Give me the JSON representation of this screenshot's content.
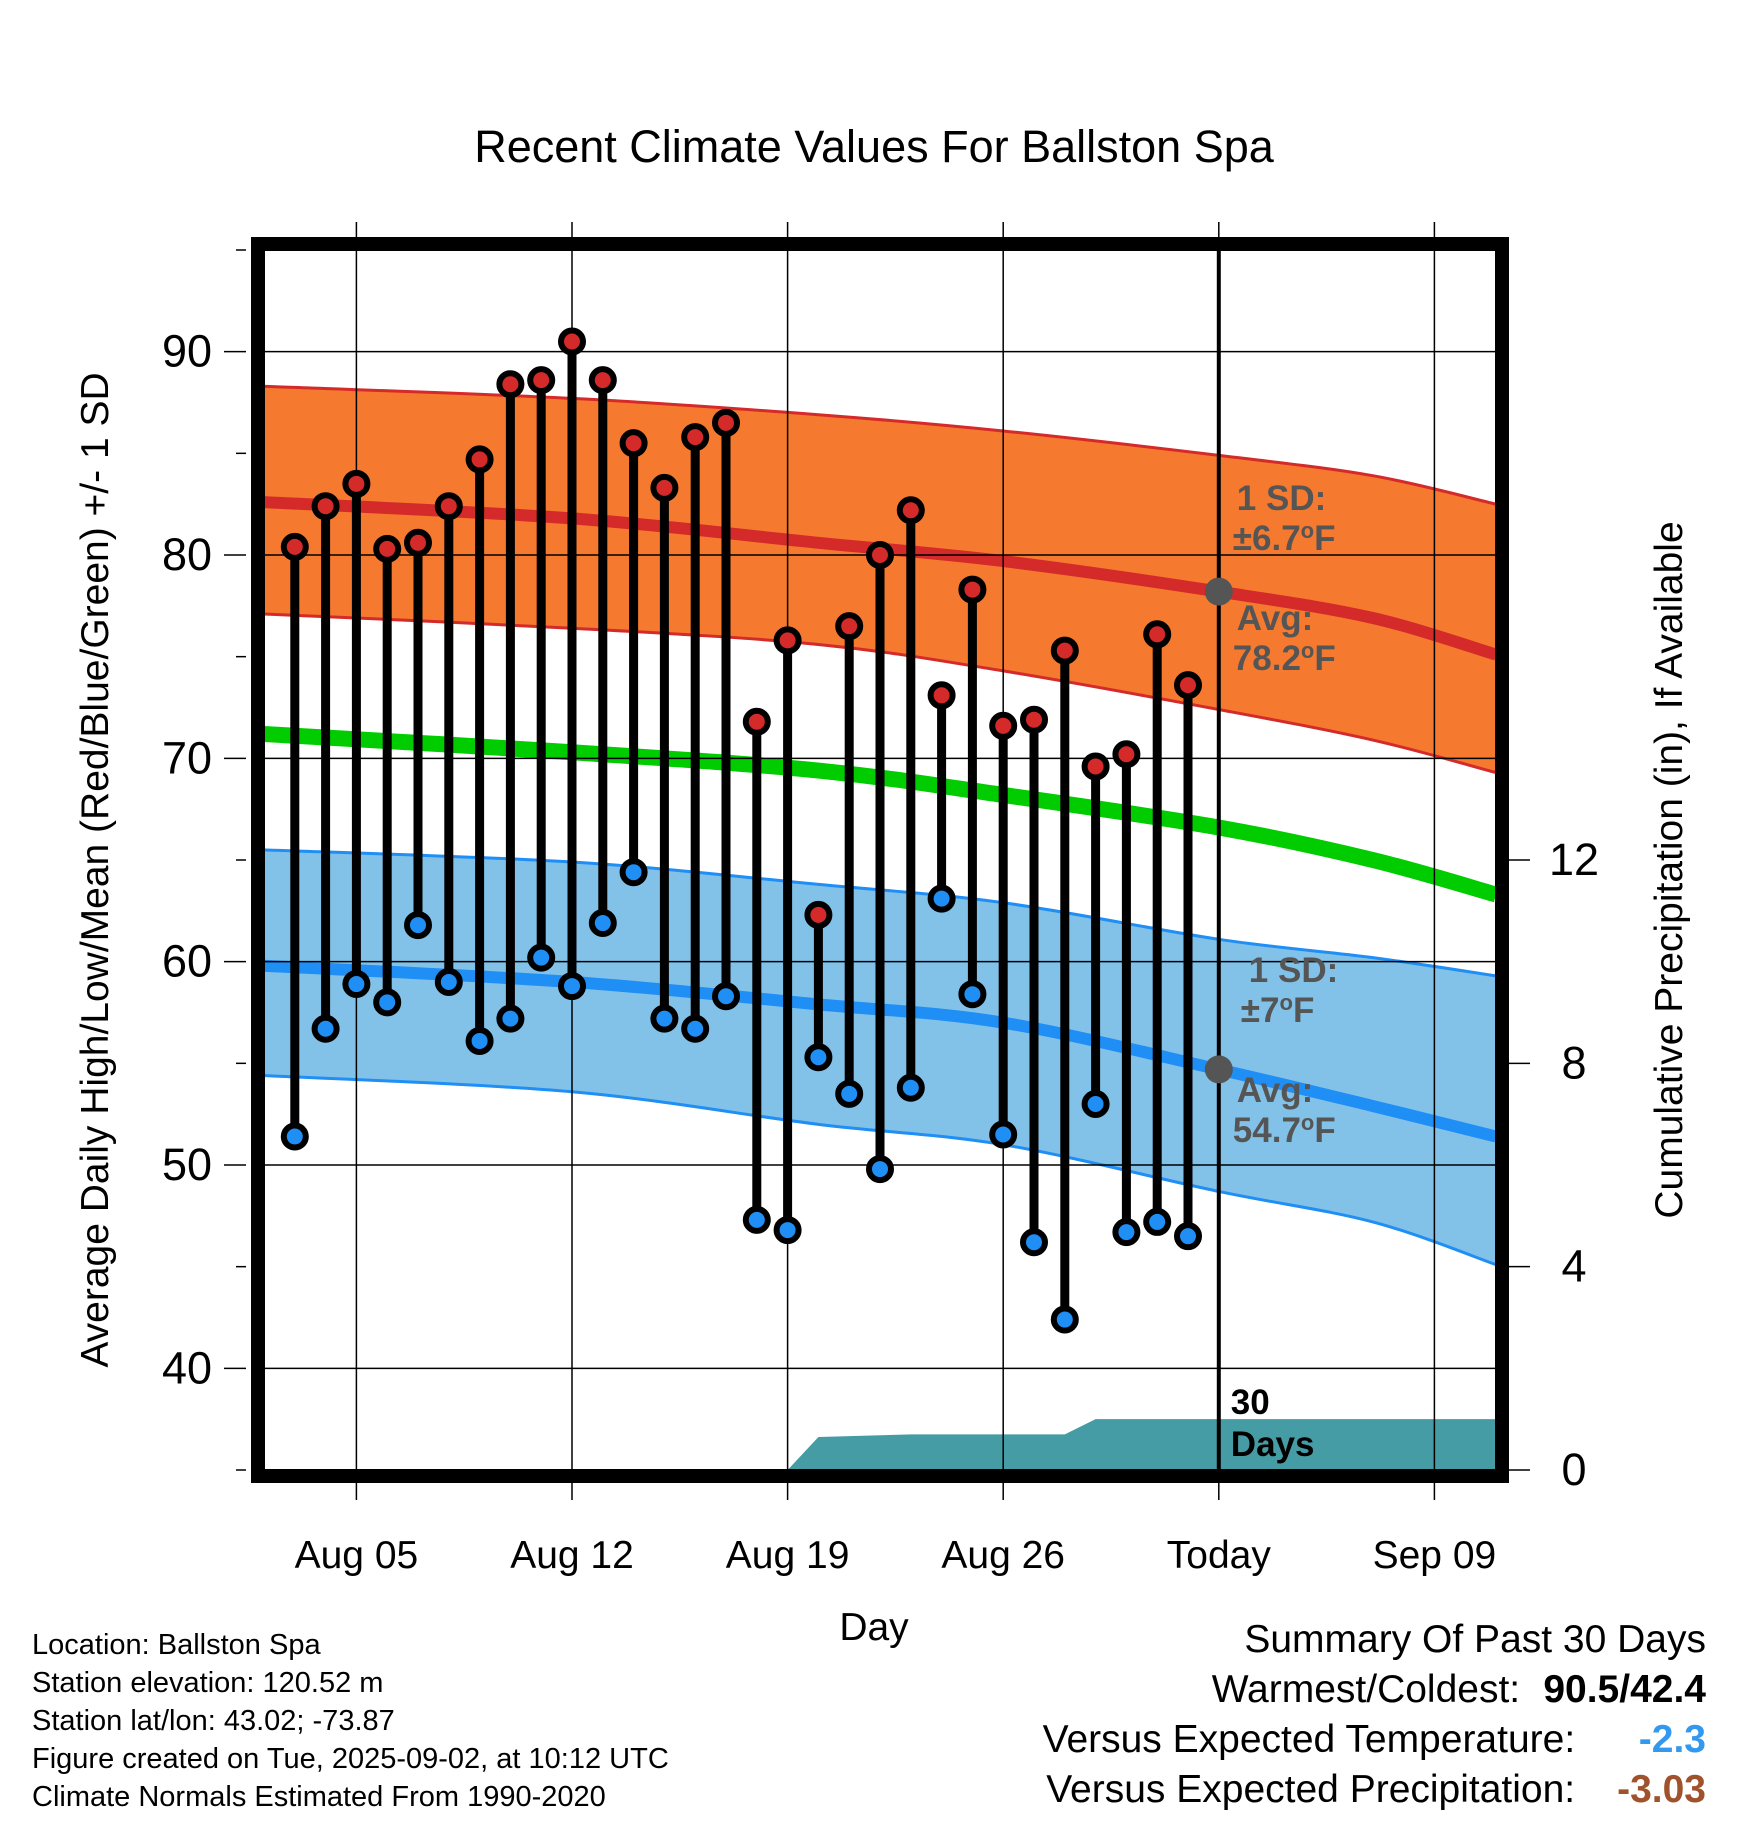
{
  "chart_data": {
    "type": "line",
    "title": "Recent Climate Values For Ballston Spa",
    "xlabel": "Day",
    "ylabel": "Average Daily High/Low/Mean (Red/Blue/Green) +/- 1 SD",
    "y2label": "Cumulative Precipitation (in), If Available",
    "ylim": [
      35,
      95
    ],
    "y2lim": [
      0,
      24
    ],
    "x_range": [
      "2025-08-02",
      "2025-09-11"
    ],
    "yticks": [
      40,
      50,
      60,
      70,
      80,
      90
    ],
    "y2ticks": [
      0,
      4,
      8,
      12
    ],
    "xtick_labels": [
      {
        "date": "2025-08-05",
        "label": "Aug 05"
      },
      {
        "date": "2025-08-12",
        "label": "Aug 12"
      },
      {
        "date": "2025-08-19",
        "label": "Aug 19"
      },
      {
        "date": "2025-08-26",
        "label": "Aug 26"
      },
      {
        "date": "2025-09-02",
        "label": "Today"
      },
      {
        "date": "2025-09-09",
        "label": "Sep 09"
      }
    ],
    "grid": true,
    "today": "2025-09-02",
    "today_label": "30\nDays",
    "colors": {
      "high": "#d42a2a",
      "high_band": "#f5792e",
      "low": "#1f8ef5",
      "low_band": "#83c2e8",
      "mean": "#00cc00",
      "precip": "#469ca4",
      "marker_text": "#555555"
    },
    "normals": {
      "dates": [
        "2025-08-02",
        "2025-08-12",
        "2025-08-20",
        "2025-08-26",
        "2025-09-02",
        "2025-09-07",
        "2025-09-11"
      ],
      "high_avg": [
        82.6,
        81.8,
        80.6,
        79.7,
        78.2,
        76.9,
        75.1
      ],
      "high_upper": [
        88.3,
        87.7,
        86.9,
        86.1,
        84.9,
        83.9,
        82.5
      ],
      "high_lower": [
        77.1,
        76.4,
        75.6,
        74.3,
        72.4,
        70.9,
        69.3
      ],
      "low_avg": [
        59.8,
        59.0,
        57.9,
        57.0,
        54.7,
        52.9,
        51.4
      ],
      "low_upper": [
        65.5,
        64.9,
        63.8,
        62.9,
        61.1,
        60.2,
        59.3
      ],
      "low_lower": [
        54.4,
        53.6,
        52.0,
        51.0,
        48.7,
        47.2,
        45.1
      ],
      "mean": [
        71.2,
        70.3,
        69.4,
        68.2,
        66.6,
        65.0,
        63.3
      ]
    },
    "annotations": {
      "high_sd_label": "1 SD:",
      "high_sd_value": "±6.7°F",
      "high_avg_label": "Avg:",
      "high_avg_value": "78.2°F",
      "low_sd_label": "1 SD:",
      "low_sd_value": "±7°F",
      "low_avg_label": "Avg:",
      "low_avg_value": "54.7°F",
      "high_avg_marker": 78.2,
      "low_avg_marker": 54.7
    },
    "series": [
      {
        "name": "Daily High",
        "x": [
          "2025-08-03",
          "2025-08-04",
          "2025-08-05",
          "2025-08-06",
          "2025-08-07",
          "2025-08-08",
          "2025-08-09",
          "2025-08-10",
          "2025-08-11",
          "2025-08-12",
          "2025-08-13",
          "2025-08-14",
          "2025-08-15",
          "2025-08-16",
          "2025-08-17",
          "2025-08-18",
          "2025-08-19",
          "2025-08-20",
          "2025-08-21",
          "2025-08-22",
          "2025-08-23",
          "2025-08-24",
          "2025-08-25",
          "2025-08-26",
          "2025-08-27",
          "2025-08-28",
          "2025-08-29",
          "2025-08-30",
          "2025-08-31",
          "2025-09-01"
        ],
        "values": [
          80.4,
          82.4,
          83.5,
          80.3,
          80.6,
          82.4,
          84.7,
          88.4,
          88.6,
          90.5,
          88.6,
          85.5,
          83.3,
          85.8,
          86.5,
          71.8,
          75.8,
          62.3,
          76.5,
          80.0,
          82.2,
          73.1,
          78.3,
          71.6,
          71.9,
          75.3,
          69.6,
          70.2,
          76.1,
          73.6
        ]
      },
      {
        "name": "Daily Low",
        "x": [
          "2025-08-03",
          "2025-08-04",
          "2025-08-05",
          "2025-08-06",
          "2025-08-07",
          "2025-08-08",
          "2025-08-09",
          "2025-08-10",
          "2025-08-11",
          "2025-08-12",
          "2025-08-13",
          "2025-08-14",
          "2025-08-15",
          "2025-08-16",
          "2025-08-17",
          "2025-08-18",
          "2025-08-19",
          "2025-08-20",
          "2025-08-21",
          "2025-08-22",
          "2025-08-23",
          "2025-08-24",
          "2025-08-25",
          "2025-08-26",
          "2025-08-27",
          "2025-08-28",
          "2025-08-29",
          "2025-08-30",
          "2025-08-31",
          "2025-09-01"
        ],
        "values": [
          51.4,
          56.7,
          58.9,
          58.0,
          61.8,
          59.0,
          56.1,
          57.2,
          60.2,
          58.8,
          61.9,
          64.4,
          57.2,
          56.7,
          58.3,
          47.3,
          46.8,
          55.3,
          53.5,
          49.8,
          53.8,
          63.1,
          58.4,
          51.5,
          46.2,
          42.4,
          53.0,
          46.7,
          47.2,
          46.5
        ]
      },
      {
        "name": "Cumulative Precipitation",
        "axis": "y2",
        "x": [
          "2025-08-19",
          "2025-08-20",
          "2025-08-23",
          "2025-08-28",
          "2025-08-29",
          "2025-09-02",
          "2025-09-11"
        ],
        "values": [
          0.0,
          0.65,
          0.7,
          0.7,
          1.0,
          1.0,
          1.0
        ]
      }
    ]
  },
  "footer": {
    "location": "Location: Ballston Spa",
    "elevation": "Station elevation: 120.52 m",
    "latlon": "Station lat/lon: 43.02; -73.87",
    "created": "Figure created on Tue, 2025-09-02, at 10:12 UTC",
    "normals": "Climate Normals Estimated From 1990-2020"
  },
  "summary": {
    "title": "Summary Of Past 30 Days",
    "warm_cold_label": "Warmest/Coldest:",
    "warm_cold_value": "90.5/42.4",
    "temp_label": "Versus Expected Temperature:",
    "temp_value": "-2.3",
    "temp_color": "#3399ee",
    "precip_label": "Versus Expected Precipitation:",
    "precip_value": "-3.03",
    "precip_color": "#a0522d"
  }
}
